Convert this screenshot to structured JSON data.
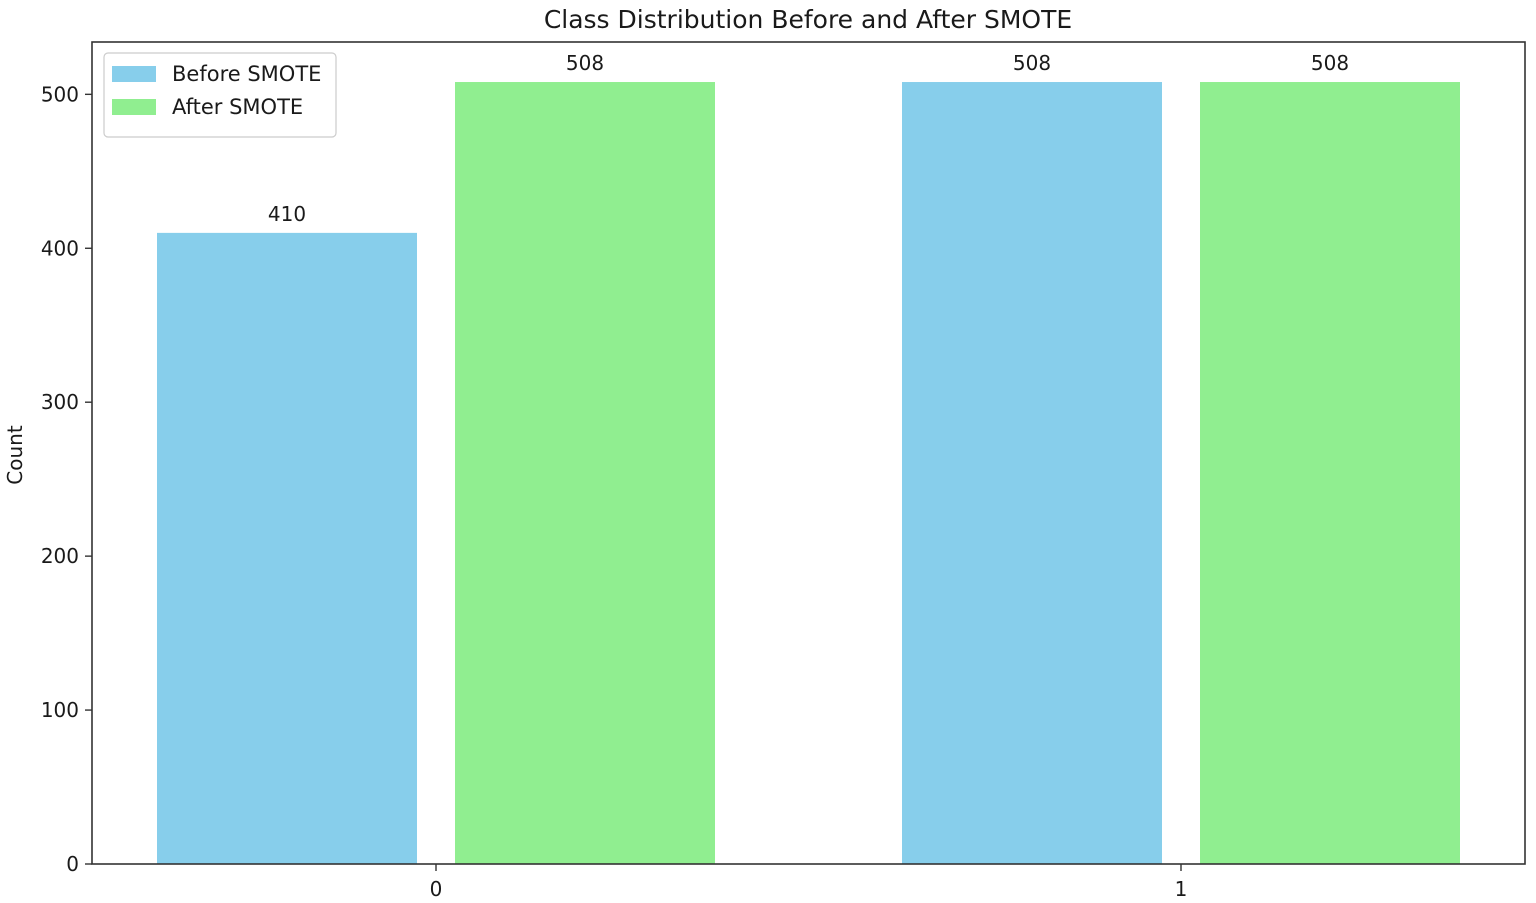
{
  "chart_data": {
    "type": "bar",
    "title": "Class Distribution Before and After SMOTE",
    "xlabel": "",
    "ylabel": "Count",
    "categories": [
      "0",
      "1"
    ],
    "series": [
      {
        "name": "Before SMOTE",
        "values": [
          410,
          508
        ],
        "color": "#87ceeb"
      },
      {
        "name": "After SMOTE",
        "values": [
          508,
          508
        ],
        "color": "#90ee90"
      }
    ],
    "ylim": [
      0,
      534
    ],
    "yticks": [
      0,
      100,
      200,
      300,
      400,
      500
    ],
    "data_labels": true,
    "legend_position": "top-left",
    "grid": false
  }
}
